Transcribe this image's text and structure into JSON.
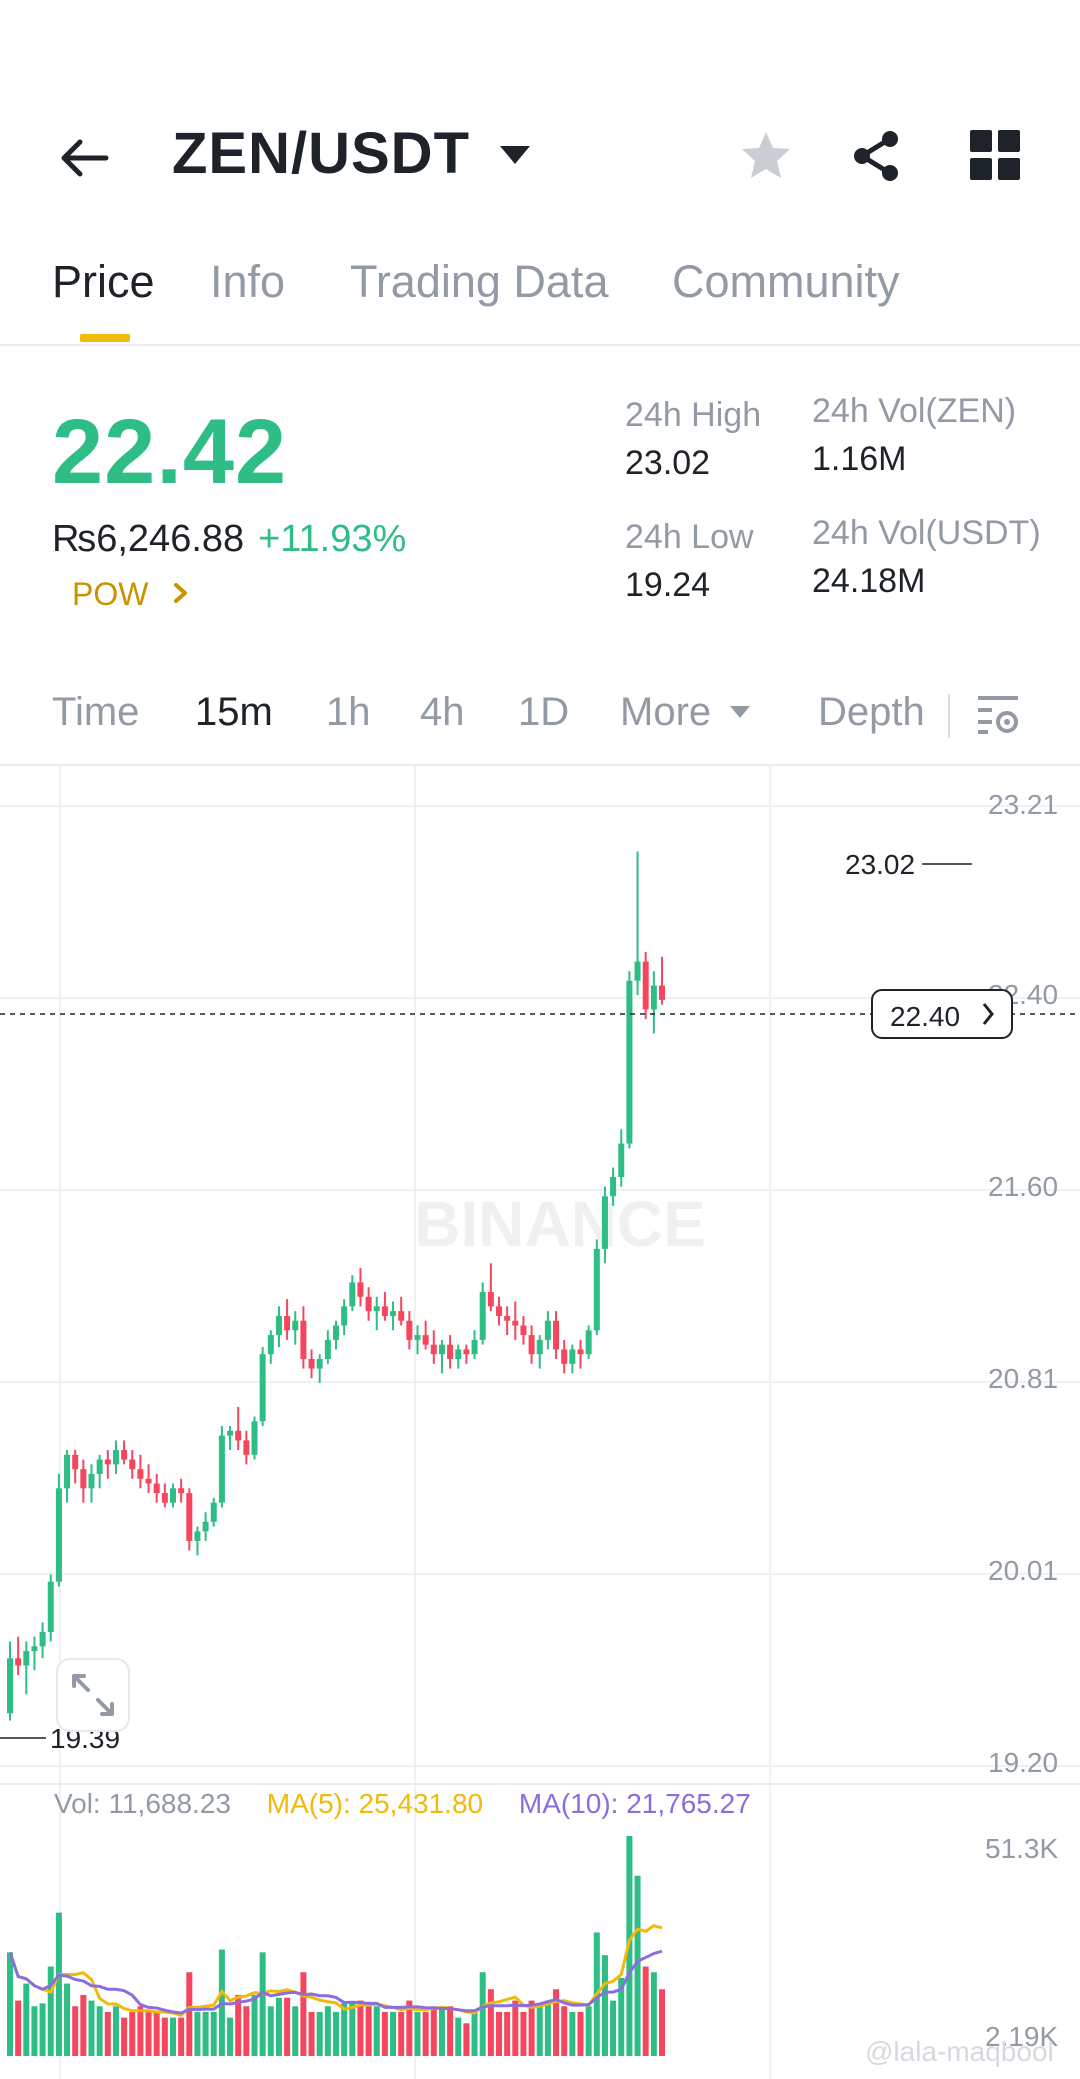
{
  "header": {
    "pair": "ZEN/USDT",
    "icons": {
      "back": "arrow-left-icon",
      "dropdown": "caret-down-icon",
      "favorite": "star-icon",
      "share": "share-icon",
      "more": "grid-icon"
    }
  },
  "tabs": [
    {
      "label": "Price",
      "active": true
    },
    {
      "label": "Info",
      "active": false
    },
    {
      "label": "Trading Data",
      "active": false
    },
    {
      "label": "Community",
      "active": false
    }
  ],
  "price": {
    "last": "22.42",
    "fiat": "₨6,246.88",
    "change": "+11.93%",
    "tag": "POW",
    "up_color": "#2ebd85",
    "down_color": "#f6465d"
  },
  "stats": {
    "high_label": "24h High",
    "high_value": "23.02",
    "low_label": "24h Low",
    "low_value": "19.24",
    "vol_base_label": "24h Vol(ZEN)",
    "vol_base_value": "1.16M",
    "vol_quote_label": "24h Vol(USDT)",
    "vol_quote_value": "24.18M"
  },
  "intervals": [
    {
      "label": "Time",
      "active": false
    },
    {
      "label": "15m",
      "active": true
    },
    {
      "label": "1h",
      "active": false
    },
    {
      "label": "4h",
      "active": false
    },
    {
      "label": "1D",
      "active": false
    },
    {
      "label": "More",
      "active": false
    }
  ],
  "depth_label": "Depth",
  "chart": {
    "price_ticks": [
      "23.21",
      "22.40",
      "21.60",
      "20.81",
      "20.01",
      "19.20"
    ],
    "high_marker": "23.02",
    "low_marker": "19.39",
    "current_price": "22.40",
    "watermark": "BINANCE",
    "volume": {
      "vol_label": "Vol: 11,688.23",
      "ma5_label": "MA(5): 25,431.80",
      "ma10_label": "MA(10): 21,765.27",
      "ma5_color": "#f0b90b",
      "ma10_color": "#8a6ddf",
      "ticks": [
        "51.3K",
        "2.19K"
      ]
    }
  },
  "corner_watermark": "@lala-maqbool",
  "chart_data": {
    "type": "candlestick",
    "y_range": [
      19.2,
      23.21
    ],
    "candles_ohlc": [
      [
        19.42,
        19.72,
        19.39,
        19.65
      ],
      [
        19.65,
        19.74,
        19.58,
        19.62
      ],
      [
        19.62,
        19.72,
        19.5,
        19.68
      ],
      [
        19.68,
        19.74,
        19.6,
        19.7
      ],
      [
        19.7,
        19.8,
        19.65,
        19.76
      ],
      [
        19.76,
        20.0,
        19.72,
        19.97
      ],
      [
        19.97,
        20.42,
        19.95,
        20.36
      ],
      [
        20.36,
        20.52,
        20.3,
        20.5
      ],
      [
        20.5,
        20.52,
        20.38,
        20.44
      ],
      [
        20.44,
        20.48,
        20.3,
        20.36
      ],
      [
        20.36,
        20.46,
        20.3,
        20.42
      ],
      [
        20.42,
        20.5,
        20.36,
        20.48
      ],
      [
        20.48,
        20.52,
        20.4,
        20.46
      ],
      [
        20.46,
        20.56,
        20.42,
        20.52
      ],
      [
        20.52,
        20.56,
        20.46,
        20.48
      ],
      [
        20.48,
        20.52,
        20.4,
        20.44
      ],
      [
        20.44,
        20.5,
        20.36,
        20.4
      ],
      [
        20.4,
        20.46,
        20.34,
        20.38
      ],
      [
        20.38,
        20.42,
        20.3,
        20.34
      ],
      [
        20.34,
        20.38,
        20.28,
        20.3
      ],
      [
        20.3,
        20.38,
        20.28,
        20.36
      ],
      [
        20.36,
        20.4,
        20.3,
        20.34
      ],
      [
        20.34,
        20.36,
        20.1,
        20.14
      ],
      [
        20.14,
        20.2,
        20.08,
        20.18
      ],
      [
        20.18,
        20.26,
        20.14,
        20.22
      ],
      [
        20.22,
        20.32,
        20.2,
        20.3
      ],
      [
        20.3,
        20.62,
        20.28,
        20.58
      ],
      [
        20.58,
        20.62,
        20.52,
        20.6
      ],
      [
        20.6,
        20.7,
        20.52,
        20.56
      ],
      [
        20.56,
        20.6,
        20.46,
        20.5
      ],
      [
        20.5,
        20.66,
        20.48,
        20.64
      ],
      [
        20.64,
        20.95,
        20.62,
        20.92
      ],
      [
        20.92,
        21.02,
        20.88,
        21.0
      ],
      [
        21.0,
        21.12,
        20.95,
        21.08
      ],
      [
        21.08,
        21.15,
        20.98,
        21.02
      ],
      [
        21.02,
        21.1,
        20.96,
        21.06
      ],
      [
        21.06,
        21.12,
        20.86,
        20.9
      ],
      [
        20.9,
        20.94,
        20.82,
        20.86
      ],
      [
        20.86,
        20.92,
        20.8,
        20.9
      ],
      [
        20.9,
        21.02,
        20.88,
        20.98
      ],
      [
        20.98,
        21.06,
        20.94,
        21.04
      ],
      [
        21.04,
        21.15,
        21.0,
        21.12
      ],
      [
        21.12,
        21.25,
        21.1,
        21.22
      ],
      [
        21.22,
        21.28,
        21.12,
        21.16
      ],
      [
        21.16,
        21.2,
        21.06,
        21.1
      ],
      [
        21.1,
        21.16,
        21.02,
        21.12
      ],
      [
        21.12,
        21.18,
        21.06,
        21.08
      ],
      [
        21.08,
        21.14,
        21.02,
        21.1
      ],
      [
        21.1,
        21.16,
        21.04,
        21.06
      ],
      [
        21.06,
        21.1,
        20.94,
        20.98
      ],
      [
        20.98,
        21.04,
        20.92,
        21.0
      ],
      [
        21.0,
        21.06,
        20.94,
        20.96
      ],
      [
        20.96,
        21.02,
        20.88,
        20.92
      ],
      [
        20.92,
        20.98,
        20.84,
        20.96
      ],
      [
        20.96,
        21.0,
        20.86,
        20.9
      ],
      [
        20.9,
        20.96,
        20.86,
        20.94
      ],
      [
        20.94,
        20.96,
        20.88,
        20.92
      ],
      [
        20.92,
        21.02,
        20.9,
        20.98
      ],
      [
        20.98,
        21.22,
        20.96,
        21.18
      ],
      [
        21.18,
        21.3,
        21.1,
        21.12
      ],
      [
        21.12,
        21.16,
        21.04,
        21.08
      ],
      [
        21.08,
        21.12,
        21.0,
        21.06
      ],
      [
        21.06,
        21.14,
        20.98,
        21.04
      ],
      [
        21.04,
        21.08,
        20.96,
        21.0
      ],
      [
        21.0,
        21.04,
        20.88,
        20.92
      ],
      [
        20.92,
        21.0,
        20.86,
        20.98
      ],
      [
        20.98,
        21.1,
        20.94,
        21.06
      ],
      [
        21.06,
        21.1,
        20.9,
        20.94
      ],
      [
        20.94,
        20.98,
        20.84,
        20.88
      ],
      [
        20.88,
        20.96,
        20.84,
        20.94
      ],
      [
        20.94,
        20.98,
        20.86,
        20.92
      ],
      [
        20.92,
        21.04,
        20.9,
        21.02
      ],
      [
        21.02,
        21.4,
        21.0,
        21.36
      ],
      [
        21.36,
        21.62,
        21.3,
        21.58
      ],
      [
        21.58,
        21.7,
        21.54,
        21.66
      ],
      [
        21.66,
        21.86,
        21.62,
        21.8
      ],
      [
        21.8,
        22.52,
        21.78,
        22.48
      ],
      [
        22.48,
        23.02,
        22.42,
        22.56
      ],
      [
        22.56,
        22.6,
        22.32,
        22.36
      ],
      [
        22.36,
        22.52,
        22.26,
        22.46
      ],
      [
        22.46,
        22.58,
        22.38,
        22.4
      ]
    ]
  }
}
